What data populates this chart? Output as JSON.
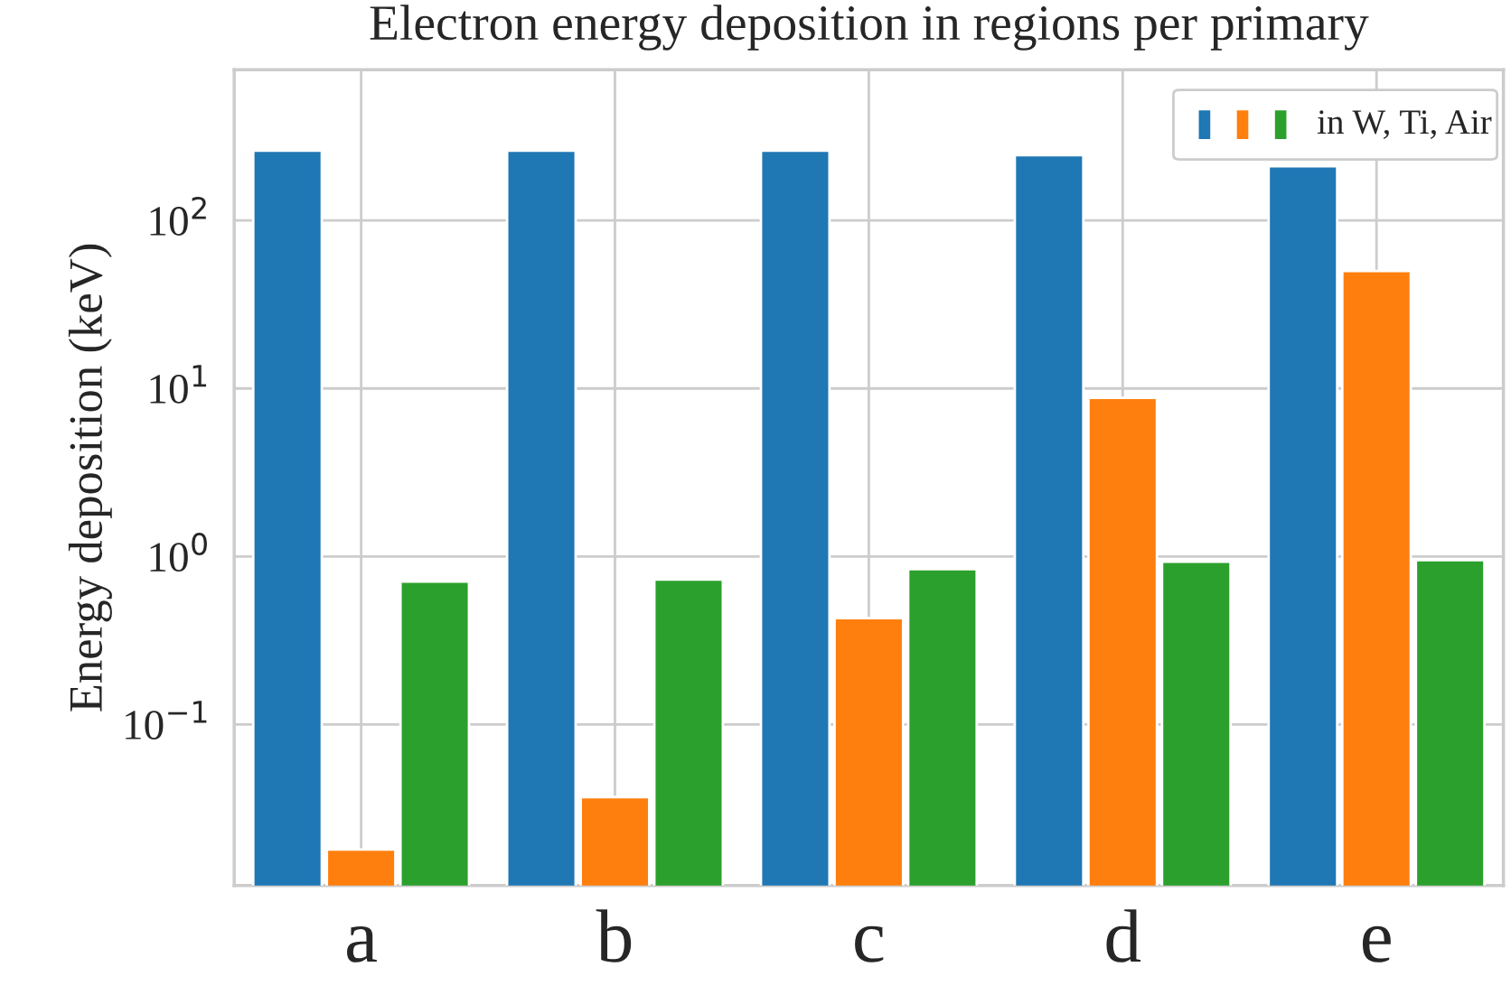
{
  "chart_data": {
    "type": "bar",
    "title": "Electron energy deposition in regions per primary",
    "ylabel": "Energy deposition (keV)",
    "legend_title": "in W, Ti, Air",
    "categories": [
      "a",
      "b",
      "c",
      "d",
      "e"
    ],
    "series": [
      {
        "color": "#1f77b4",
        "values": [
          260,
          260,
          260,
          245,
          210
        ]
      },
      {
        "color": "#ff7f0e",
        "values": [
          0.018,
          0.037,
          0.43,
          8.8,
          50
        ]
      },
      {
        "color": "#2ca02c",
        "values": [
          0.71,
          0.73,
          0.84,
          0.93,
          0.95
        ]
      }
    ],
    "log": "y",
    "ylim": [
      0.011,
      790
    ],
    "yticks": [
      {
        "value": 0.1,
        "label": "10$^{−1}$"
      },
      {
        "value": 1,
        "label": "10$^{0}$"
      },
      {
        "value": 10,
        "label": "10$^{1}$"
      },
      {
        "value": 100,
        "label": "10$^{2}$"
      }
    ],
    "grid": true
  }
}
